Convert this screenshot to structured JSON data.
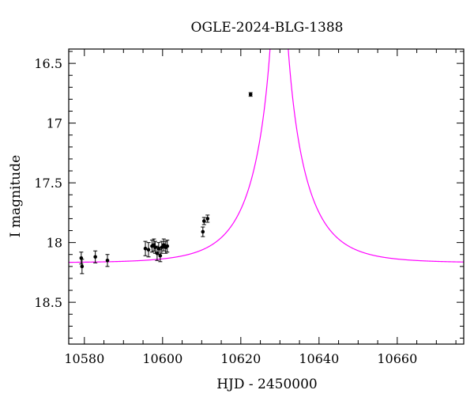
{
  "chart_data": {
    "type": "scatter",
    "title": "OGLE-2024-BLG-1388",
    "xlabel": "HJD - 2450000",
    "ylabel": "I magnitude",
    "xlim": [
      10576,
      10677
    ],
    "ylim": [
      18.85,
      16.38
    ],
    "y_inverted": true,
    "grid": false,
    "legend": "none",
    "x_ticks": [
      10580,
      10600,
      10620,
      10640,
      10660
    ],
    "x_tick_labels": [
      "10580",
      "10600",
      "10620",
      "10640",
      "10660"
    ],
    "y_ticks": [
      16.5,
      17,
      17.5,
      18,
      18.5
    ],
    "y_tick_labels": [
      "16.5",
      "17",
      "17.5",
      "18",
      "18.5"
    ],
    "model_color": "#ff00ff",
    "point_color": "#000000",
    "model_params": {
      "t0": 10629.8,
      "tE": 12.0,
      "u0": 0.02,
      "baseline_mag": 18.17
    },
    "points": [
      {
        "x": 10579.2,
        "y": 18.13,
        "err": 0.05
      },
      {
        "x": 10579.4,
        "y": 18.2,
        "err": 0.06
      },
      {
        "x": 10582.8,
        "y": 18.12,
        "err": 0.05
      },
      {
        "x": 10585.9,
        "y": 18.15,
        "err": 0.05
      },
      {
        "x": 10595.6,
        "y": 18.05,
        "err": 0.06
      },
      {
        "x": 10596.4,
        "y": 18.06,
        "err": 0.06
      },
      {
        "x": 10597.3,
        "y": 18.03,
        "err": 0.05
      },
      {
        "x": 10597.8,
        "y": 18.02,
        "err": 0.05
      },
      {
        "x": 10598.1,
        "y": 18.04,
        "err": 0.05
      },
      {
        "x": 10598.6,
        "y": 18.09,
        "err": 0.06
      },
      {
        "x": 10599.0,
        "y": 18.05,
        "err": 0.05
      },
      {
        "x": 10599.4,
        "y": 18.11,
        "err": 0.05
      },
      {
        "x": 10599.8,
        "y": 18.04,
        "err": 0.05
      },
      {
        "x": 10600.3,
        "y": 18.02,
        "err": 0.05
      },
      {
        "x": 10600.8,
        "y": 18.04,
        "err": 0.05
      },
      {
        "x": 10601.2,
        "y": 18.03,
        "err": 0.05
      },
      {
        "x": 10610.3,
        "y": 17.91,
        "err": 0.04
      },
      {
        "x": 10610.6,
        "y": 17.82,
        "err": 0.03
      },
      {
        "x": 10611.5,
        "y": 17.8,
        "err": 0.03
      },
      {
        "x": 10622.5,
        "y": 16.76,
        "err": 0.015
      }
    ]
  }
}
